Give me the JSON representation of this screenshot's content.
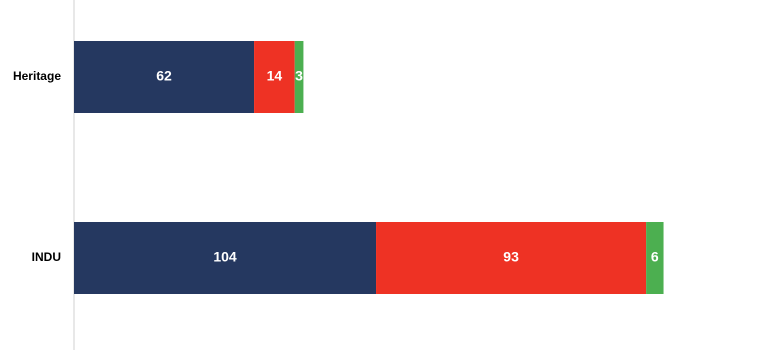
{
  "chart_data": {
    "type": "stacked-bar-horizontal",
    "categories": [
      "Heritage",
      "INDU"
    ],
    "series": [
      {
        "color": "#253860",
        "values": [
          62,
          104
        ]
      },
      {
        "color": "#ee3224",
        "values": [
          14,
          93
        ]
      },
      {
        "color": "#4caf50",
        "values": [
          3,
          6
        ]
      }
    ],
    "xlim": [
      0,
      240
    ]
  }
}
